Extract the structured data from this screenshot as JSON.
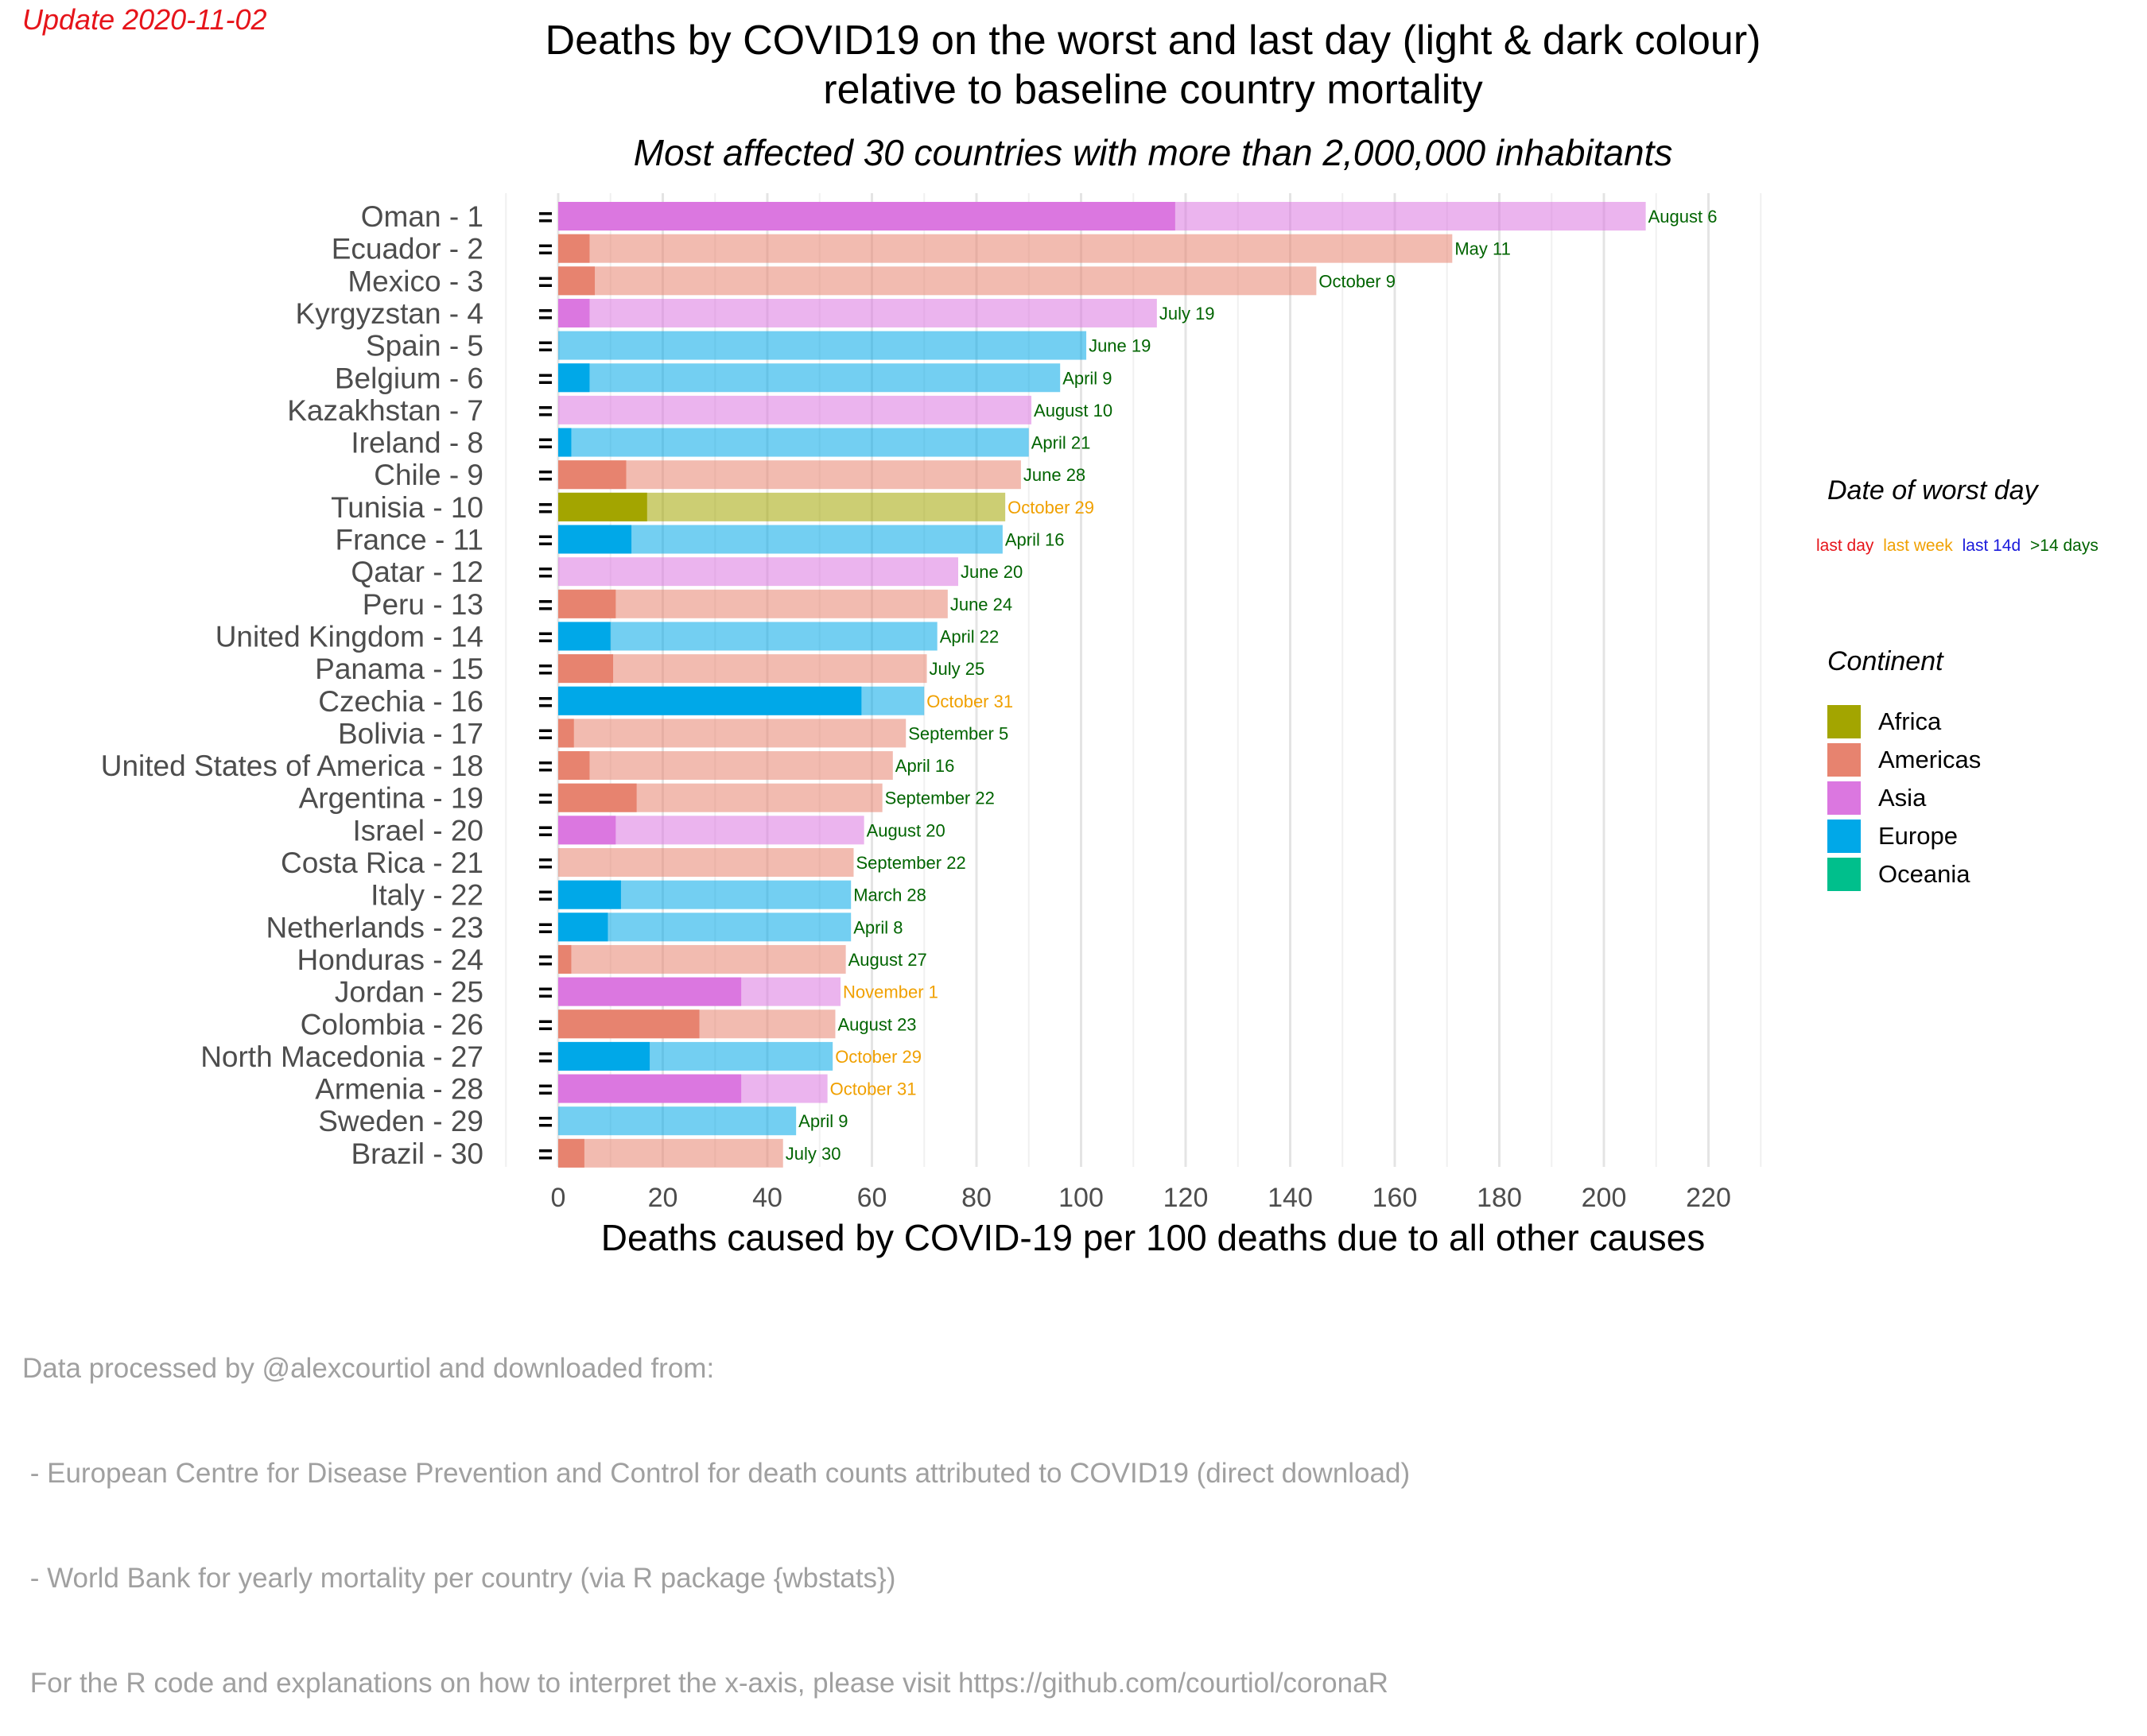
{
  "update": "Update 2020-11-02",
  "title_line1": "Deaths by COVID19 on the worst and last day (light & dark colour)",
  "title_line2": "relative to baseline country mortality",
  "subtitle": "Most affected 30 countries with more than 2,000,000 inhabitants",
  "xlabel": "Deaths caused by COVID-19 per 100 deaths due to all other causes",
  "caption": [
    "Data processed by @alexcourtiol and downloaded from:",
    " - European Centre for Disease Prevention and Control for death counts attributed to COVID19 (direct download)",
    " - World Bank for yearly mortality per country (via R package {wbstats})",
    " For the R code and explanations on how to interpret the x-axis, please visit https://github.com/courtiol/coronaR"
  ],
  "legend_worst_day": {
    "title": "Date of worst day",
    "items": [
      {
        "label": "last day",
        "color": "#e6141a"
      },
      {
        "label": "last week",
        "color": "#f0a000"
      },
      {
        "label": "last 14d",
        "color": "#1a1adc"
      },
      {
        "label": ">14 days",
        "color": "#006400"
      }
    ]
  },
  "legend_continent": {
    "title": "Continent",
    "items": [
      {
        "label": "Africa",
        "color": "#a3a500"
      },
      {
        "label": "Americas",
        "color": "#e7836f"
      },
      {
        "label": "Asia",
        "color": "#db77e0"
      },
      {
        "label": "Europe",
        "color": "#00a8e8"
      },
      {
        "label": "Oceania",
        "color": "#00bf8c"
      }
    ]
  },
  "chart_data": {
    "type": "bar",
    "orientation": "horizontal",
    "xlim": [
      0,
      220
    ],
    "xticks": [
      0,
      20,
      40,
      60,
      80,
      100,
      120,
      140,
      160,
      180,
      200,
      220
    ],
    "grid": true,
    "rank_marker": "=",
    "bars": [
      {
        "label": "Oman - 1",
        "continent": "Asia",
        "worst": 208,
        "last": 118,
        "date": "August 6",
        "date_cat": ">14 days"
      },
      {
        "label": "Ecuador - 2",
        "continent": "Americas",
        "worst": 171,
        "last": 6,
        "date": "May 11",
        "date_cat": ">14 days"
      },
      {
        "label": "Mexico - 3",
        "continent": "Americas",
        "worst": 145,
        "last": 7,
        "date": "October 9",
        "date_cat": ">14 days"
      },
      {
        "label": "Kyrgyzstan - 4",
        "continent": "Asia",
        "worst": 114.5,
        "last": 6,
        "date": "July 19",
        "date_cat": ">14 days"
      },
      {
        "label": "Spain - 5",
        "continent": "Europe",
        "worst": 101,
        "last": 0,
        "date": "June 19",
        "date_cat": ">14 days"
      },
      {
        "label": "Belgium - 6",
        "continent": "Europe",
        "worst": 96,
        "last": 6,
        "date": "April 9",
        "date_cat": ">14 days"
      },
      {
        "label": "Kazakhstan - 7",
        "continent": "Asia",
        "worst": 90.5,
        "last": 0,
        "date": "August 10",
        "date_cat": ">14 days"
      },
      {
        "label": "Ireland - 8",
        "continent": "Europe",
        "worst": 90,
        "last": 2.5,
        "date": "April 21",
        "date_cat": ">14 days"
      },
      {
        "label": "Chile - 9",
        "continent": "Americas",
        "worst": 88.5,
        "last": 13,
        "date": "June 28",
        "date_cat": ">14 days"
      },
      {
        "label": "Tunisia - 10",
        "continent": "Africa",
        "worst": 85.5,
        "last": 17,
        "date": "October 29",
        "date_cat": "last week"
      },
      {
        "label": "France - 11",
        "continent": "Europe",
        "worst": 85,
        "last": 14,
        "date": "April 16",
        "date_cat": ">14 days"
      },
      {
        "label": "Qatar - 12",
        "continent": "Asia",
        "worst": 76.5,
        "last": 0,
        "date": "June 20",
        "date_cat": ">14 days"
      },
      {
        "label": "Peru - 13",
        "continent": "Americas",
        "worst": 74.5,
        "last": 11,
        "date": "June 24",
        "date_cat": ">14 days"
      },
      {
        "label": "United Kingdom - 14",
        "continent": "Europe",
        "worst": 72.5,
        "last": 10,
        "date": "April 22",
        "date_cat": ">14 days"
      },
      {
        "label": "Panama - 15",
        "continent": "Americas",
        "worst": 70.5,
        "last": 10.5,
        "date": "July 25",
        "date_cat": ">14 days"
      },
      {
        "label": "Czechia - 16",
        "continent": "Europe",
        "worst": 70,
        "last": 58,
        "date": "October 31",
        "date_cat": "last week"
      },
      {
        "label": "Bolivia - 17",
        "continent": "Americas",
        "worst": 66.5,
        "last": 3,
        "date": "September 5",
        "date_cat": ">14 days"
      },
      {
        "label": "United States of America - 18",
        "continent": "Americas",
        "worst": 64,
        "last": 6,
        "date": "April 16",
        "date_cat": ">14 days"
      },
      {
        "label": "Argentina - 19",
        "continent": "Americas",
        "worst": 62,
        "last": 15,
        "date": "September 22",
        "date_cat": ">14 days"
      },
      {
        "label": "Israel - 20",
        "continent": "Asia",
        "worst": 58.5,
        "last": 11,
        "date": "August 20",
        "date_cat": ">14 days"
      },
      {
        "label": "Costa Rica - 21",
        "continent": "Americas",
        "worst": 56.5,
        "last": 0,
        "date": "September 22",
        "date_cat": ">14 days"
      },
      {
        "label": "Italy - 22",
        "continent": "Europe",
        "worst": 56,
        "last": 12,
        "date": "March 28",
        "date_cat": ">14 days"
      },
      {
        "label": "Netherlands - 23",
        "continent": "Europe",
        "worst": 56,
        "last": 9.5,
        "date": "April 8",
        "date_cat": ">14 days"
      },
      {
        "label": "Honduras - 24",
        "continent": "Americas",
        "worst": 55,
        "last": 2.5,
        "date": "August 27",
        "date_cat": ">14 days"
      },
      {
        "label": "Jordan - 25",
        "continent": "Asia",
        "worst": 54,
        "last": 35,
        "date": "November 1",
        "date_cat": "last week"
      },
      {
        "label": "Colombia - 26",
        "continent": "Americas",
        "worst": 53,
        "last": 27,
        "date": "August 23",
        "date_cat": ">14 days"
      },
      {
        "label": "North Macedonia - 27",
        "continent": "Europe",
        "worst": 52.5,
        "last": 17.5,
        "date": "October 29",
        "date_cat": "last week"
      },
      {
        "label": "Armenia - 28",
        "continent": "Asia",
        "worst": 51.5,
        "last": 35,
        "date": "October 31",
        "date_cat": "last week"
      },
      {
        "label": "Sweden - 29",
        "continent": "Europe",
        "worst": 45.5,
        "last": 0,
        "date": "April 9",
        "date_cat": ">14 days"
      },
      {
        "label": "Brazil - 30",
        "continent": "Americas",
        "worst": 43,
        "last": 5,
        "date": "July 30",
        "date_cat": ">14 days"
      }
    ]
  }
}
